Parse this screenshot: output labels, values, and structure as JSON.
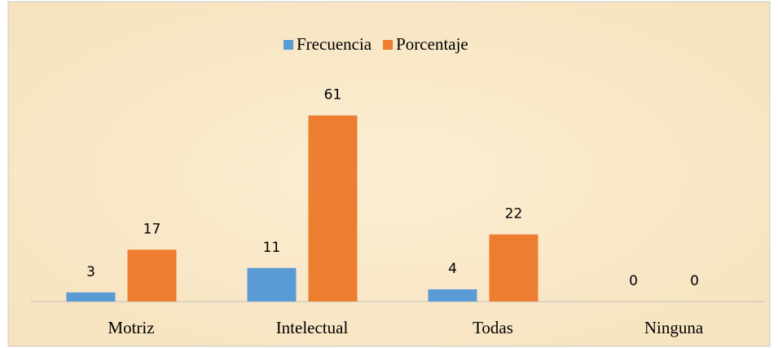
{
  "chart_data": {
    "type": "bar",
    "categories": [
      "Motriz",
      "Intelectual",
      "Todas",
      "Ninguna"
    ],
    "series": [
      {
        "name": "Frecuencia",
        "color": "#5b9bd5",
        "values": [
          3,
          11,
          4,
          0
        ]
      },
      {
        "name": "Porcentaje",
        "color": "#ed7d31",
        "values": [
          17,
          61,
          22,
          0
        ]
      }
    ],
    "ylim": [
      0,
      70
    ],
    "legend": "top"
  }
}
